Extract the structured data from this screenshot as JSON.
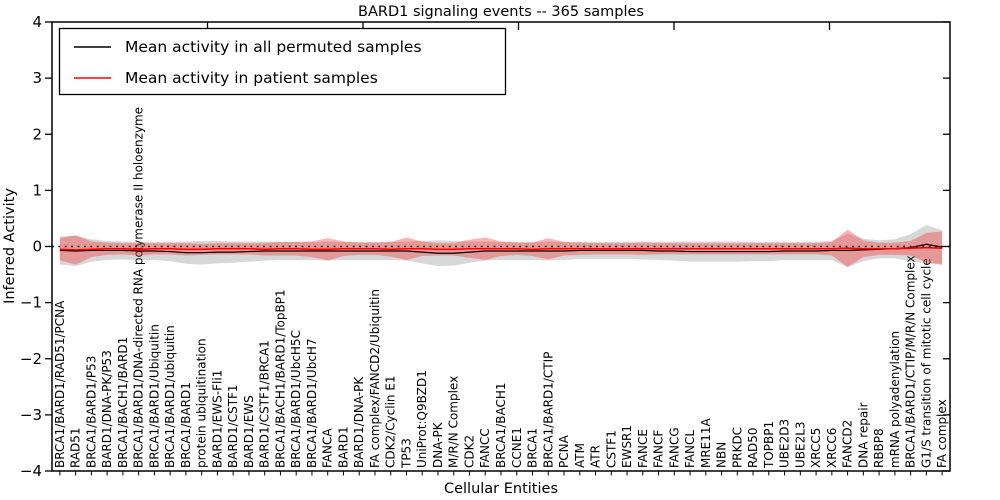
{
  "chart_data": {
    "type": "line",
    "title": "BARD1 signaling events -- 365 samples",
    "xlabel": "Cellular Entities",
    "ylabel": "Inferred Activity",
    "ylim": [
      -4,
      4
    ],
    "yticks": [
      4,
      3,
      2,
      1,
      0,
      -1,
      -2,
      -3,
      -4
    ],
    "grid": false,
    "legend_position": "upper left",
    "baseline": {
      "value": 0,
      "style": "dotted",
      "color": "#000000"
    },
    "colors": {
      "permuted_line": "#000000",
      "patient_line": "#ff0000",
      "permuted_band": "rgba(110,110,110,0.28)",
      "patient_band": "rgba(255,25,25,0.33)"
    },
    "categories": [
      "BRCA1/BARD1/RAD51/PCNA",
      "RAD51",
      "BRCA1/BARD1/P53",
      "BARD1/DNA-PK/P53",
      "BRCA1/BACH1/BARD1",
      "BRCA1/BARD1/DNA-directed RNA polymerase II holoenzyme",
      "BRCA1/BARD1/Ubiquitin",
      "BRCA1/BARD1/ubiquitin",
      "BRCA1/BARD1",
      "protein ubiquitination",
      "BARD1/EWS-Fli1",
      "BARD1/CSTF1",
      "BARD1/EWS",
      "BARD1/CSTF1/BRCA1",
      "BRCA1/BACH1/BARD1/TopBP1",
      "BRCA1/BARD1/UbcH5C",
      "BRCA1/BARD1/UbcH7",
      "FANCA",
      "BARD1",
      "BARD1/DNA-PK",
      "FA complex/FANCD2/Ubiquitin",
      "CDK2/Cyclin E1",
      "TP53",
      "UniProt:Q9BZD1",
      "DNA-PK",
      "M/R/N Complex",
      "CDK2",
      "FANCC",
      "BRCA1/BACH1",
      "CCNE1",
      "BRCA1",
      "BRCA1/BARD1/CTIP",
      "PCNA",
      "ATM",
      "ATR",
      "CSTF1",
      "EWSR1",
      "FANCE",
      "FANCF",
      "FANCG",
      "FANCL",
      "MRE11A",
      "NBN",
      "PRKDC",
      "RAD50",
      "TOPBP1",
      "UBE2D3",
      "UBE2L3",
      "XRCC5",
      "XRCC6",
      "FANCD2",
      "DNA repair",
      "RBBP8",
      "mRNA polyadenylation",
      "BRCA1/BARD1/CTIP/M/R/N Complex",
      "G1/S transition of mitotic cell cycle",
      "FA complex"
    ],
    "series": [
      {
        "name": "Mean activity in all permuted samples",
        "color": "#000000",
        "values": [
          -0.07,
          -0.08,
          -0.07,
          -0.07,
          -0.07,
          -0.08,
          -0.08,
          -0.09,
          -0.11,
          -0.11,
          -0.1,
          -0.1,
          -0.09,
          -0.08,
          -0.08,
          -0.08,
          -0.08,
          -0.08,
          -0.08,
          -0.08,
          -0.08,
          -0.08,
          -0.08,
          -0.1,
          -0.12,
          -0.12,
          -0.1,
          -0.08,
          -0.08,
          -0.08,
          -0.08,
          -0.08,
          -0.08,
          -0.07,
          -0.07,
          -0.07,
          -0.07,
          -0.07,
          -0.08,
          -0.08,
          -0.09,
          -0.09,
          -0.09,
          -0.09,
          -0.09,
          -0.09,
          -0.08,
          -0.08,
          -0.08,
          -0.07,
          -0.07,
          -0.06,
          -0.05,
          -0.04,
          -0.02,
          0.04,
          -0.01
        ],
        "band_halfwidth": [
          0.25,
          0.27,
          0.2,
          0.17,
          0.16,
          0.16,
          0.16,
          0.17,
          0.2,
          0.21,
          0.2,
          0.19,
          0.18,
          0.17,
          0.16,
          0.16,
          0.16,
          0.17,
          0.16,
          0.16,
          0.16,
          0.16,
          0.17,
          0.2,
          0.23,
          0.22,
          0.19,
          0.17,
          0.16,
          0.16,
          0.16,
          0.17,
          0.16,
          0.15,
          0.15,
          0.15,
          0.15,
          0.16,
          0.16,
          0.17,
          0.18,
          0.18,
          0.18,
          0.18,
          0.17,
          0.17,
          0.16,
          0.16,
          0.16,
          0.17,
          0.3,
          0.2,
          0.16,
          0.17,
          0.24,
          0.34,
          0.3
        ]
      },
      {
        "name": "Mean activity in patient samples",
        "color": "#ff0000",
        "values": [
          -0.05,
          -0.06,
          -0.05,
          -0.04,
          -0.04,
          -0.05,
          -0.04,
          -0.04,
          -0.05,
          -0.05,
          -0.04,
          -0.04,
          -0.04,
          -0.05,
          -0.04,
          -0.04,
          -0.05,
          -0.05,
          -0.04,
          -0.04,
          -0.04,
          -0.05,
          -0.04,
          -0.04,
          -0.05,
          -0.05,
          -0.04,
          -0.04,
          -0.04,
          -0.04,
          -0.05,
          -0.04,
          -0.04,
          -0.04,
          -0.04,
          -0.04,
          -0.04,
          -0.04,
          -0.04,
          -0.04,
          -0.04,
          -0.04,
          -0.04,
          -0.04,
          -0.04,
          -0.04,
          -0.04,
          -0.04,
          -0.04,
          -0.04,
          -0.03,
          -0.04,
          -0.04,
          -0.04,
          -0.03,
          -0.02,
          -0.03
        ],
        "band_halfwidth": [
          0.2,
          0.26,
          0.14,
          0.11,
          0.1,
          0.11,
          0.1,
          0.1,
          0.11,
          0.1,
          0.1,
          0.1,
          0.1,
          0.11,
          0.12,
          0.12,
          0.14,
          0.2,
          0.13,
          0.11,
          0.11,
          0.13,
          0.2,
          0.13,
          0.11,
          0.11,
          0.16,
          0.2,
          0.13,
          0.11,
          0.12,
          0.19,
          0.12,
          0.11,
          0.1,
          0.1,
          0.1,
          0.11,
          0.1,
          0.1,
          0.1,
          0.1,
          0.1,
          0.1,
          0.1,
          0.1,
          0.1,
          0.1,
          0.1,
          0.12,
          0.33,
          0.15,
          0.11,
          0.11,
          0.13,
          0.26,
          0.3
        ]
      }
    ]
  }
}
